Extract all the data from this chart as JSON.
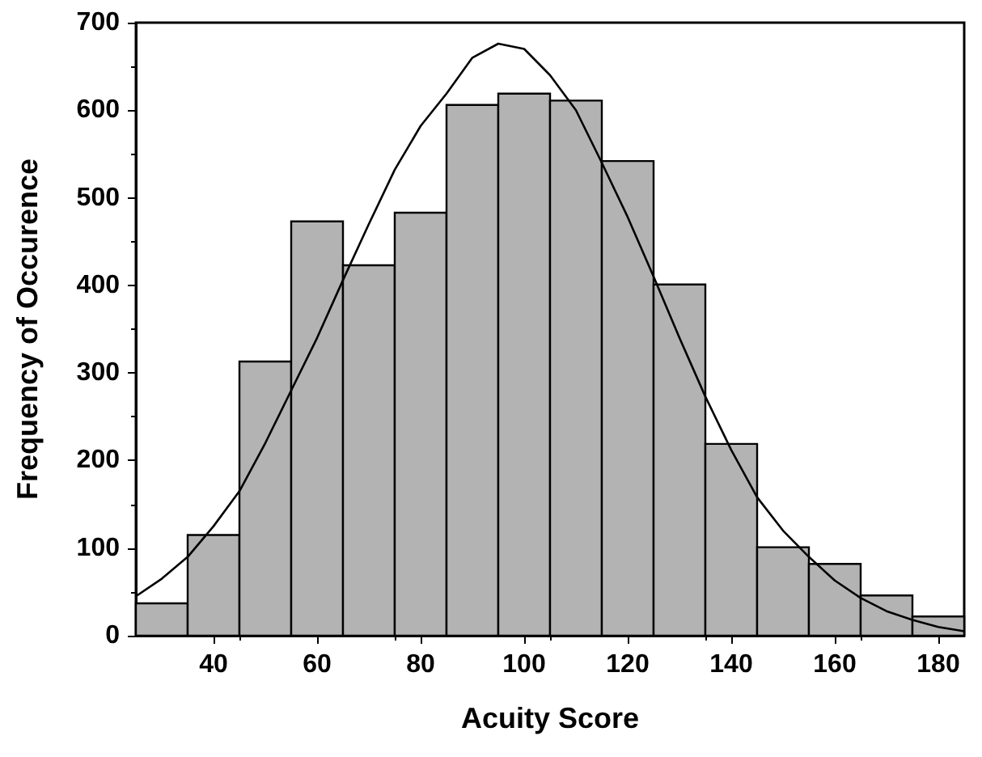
{
  "chart_data": {
    "type": "histogram",
    "xlabel": "Acuity Score",
    "ylabel": "Frequency of Occurence",
    "xlim": [
      25,
      185
    ],
    "xticks": [
      40,
      60,
      80,
      100,
      120,
      140,
      160,
      180
    ],
    "ylim": [
      0,
      700
    ],
    "yticks": [
      0,
      100,
      200,
      300,
      400,
      500,
      600,
      700
    ],
    "grid": false,
    "series": [
      {
        "color": "#b3b3b3",
        "bins": [
          25,
          35,
          45,
          55,
          65,
          75,
          85,
          95,
          105,
          115,
          125,
          135,
          145,
          155,
          165,
          175,
          185
        ],
        "values": [
          37,
          115,
          313,
          473,
          423,
          483,
          606,
          619,
          611,
          542,
          401,
          219,
          101,
          82,
          46,
          22
        ]
      },
      {
        "type": "line",
        "color": "#000000",
        "marker": "none",
        "x": [
          25,
          30,
          35,
          40,
          45,
          50,
          55,
          60,
          65,
          70,
          75,
          80,
          85,
          90,
          95,
          100,
          105,
          110,
          115,
          120,
          125,
          130,
          135,
          140,
          145,
          150,
          155,
          160,
          165,
          170,
          175,
          180,
          185
        ],
        "values": [
          45,
          65,
          90,
          125,
          165,
          220,
          280,
          340,
          406,
          470,
          532,
          582,
          619,
          660,
          676,
          670,
          640,
          600,
          540,
          478,
          410,
          340,
          273,
          212,
          158,
          120,
          90,
          63,
          43,
          28,
          18,
          10,
          5
        ]
      }
    ]
  }
}
